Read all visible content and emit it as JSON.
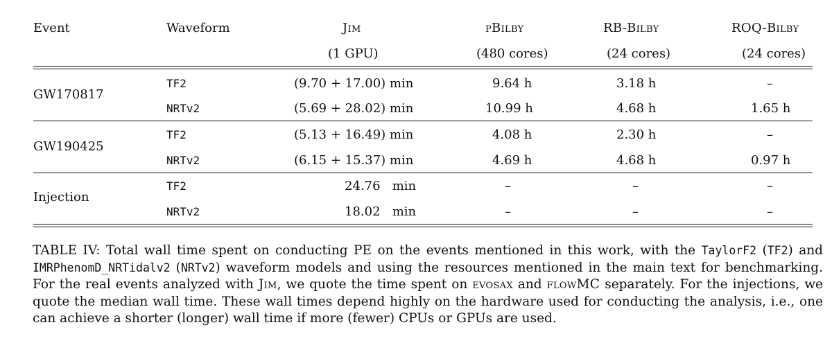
{
  "table": {
    "headers": {
      "event": "Event",
      "waveform": "Waveform",
      "jim": "Jim",
      "jim_sub": "(1 GPU)",
      "pbilby": "pBilby",
      "pbilby_sub": "(480 cores)",
      "rbbilby": "RB-Bilby",
      "rbbilby_sub": "(24 cores)",
      "roqbilby": "ROQ-Bilby",
      "roqbilby_sub": "(24 cores)"
    },
    "rows": [
      {
        "event": "GW170817",
        "waveform": "TF2",
        "jim": "(9.70 + 17.00)  min",
        "pbilby": "9.64 h",
        "rbbilby": "3.18 h",
        "roqbilby": "–"
      },
      {
        "event": "",
        "waveform": "NRTv2",
        "jim": "(5.69 + 28.02)  min",
        "pbilby": "10.99 h",
        "rbbilby": "4.68 h",
        "roqbilby": "1.65 h"
      },
      {
        "event": "GW190425",
        "waveform": "TF2",
        "jim": "(5.13 + 16.49)  min",
        "pbilby": "4.08 h",
        "rbbilby": "2.30 h",
        "roqbilby": "–"
      },
      {
        "event": "",
        "waveform": "NRTv2",
        "jim": "(6.15 + 15.37)  min",
        "pbilby": "4.69 h",
        "rbbilby": "4.68 h",
        "roqbilby": "0.97 h"
      },
      {
        "event": "Injection",
        "waveform": "TF2",
        "jim": "24.76   min",
        "pbilby": "–",
        "rbbilby": "–",
        "roqbilby": "–"
      },
      {
        "event": "",
        "waveform": "NRTv2",
        "jim": "18.02   min",
        "pbilby": "–",
        "rbbilby": "–",
        "roqbilby": "–"
      }
    ]
  },
  "caption": {
    "label": "TABLE IV:",
    "t1": " Total wall time spent on conducting PE on the events mentioned in this work, with the ",
    "m1": "TaylorF2",
    "t2": " (",
    "m2": "TF2",
    "t3": ") and ",
    "m3": "IMRPhenomD_NRTidalv2",
    "t4": " (",
    "m4": "NRTv2",
    "t5": ") waveform models and using the resources mentioned in the main text for benchmarking. For the real events analyzed with ",
    "sc1": "Jim",
    "t6": ", we quote the time spent on ",
    "sc2": "evosax",
    "t7": " and ",
    "sc3": "flowMC",
    "t8": " separately. For the injections, we quote the median wall time. These wall times depend highly on the hardware used for conducting the analysis, i.e., one can achieve a shorter (longer) wall time if more (fewer) CPUs or GPUs are used."
  }
}
